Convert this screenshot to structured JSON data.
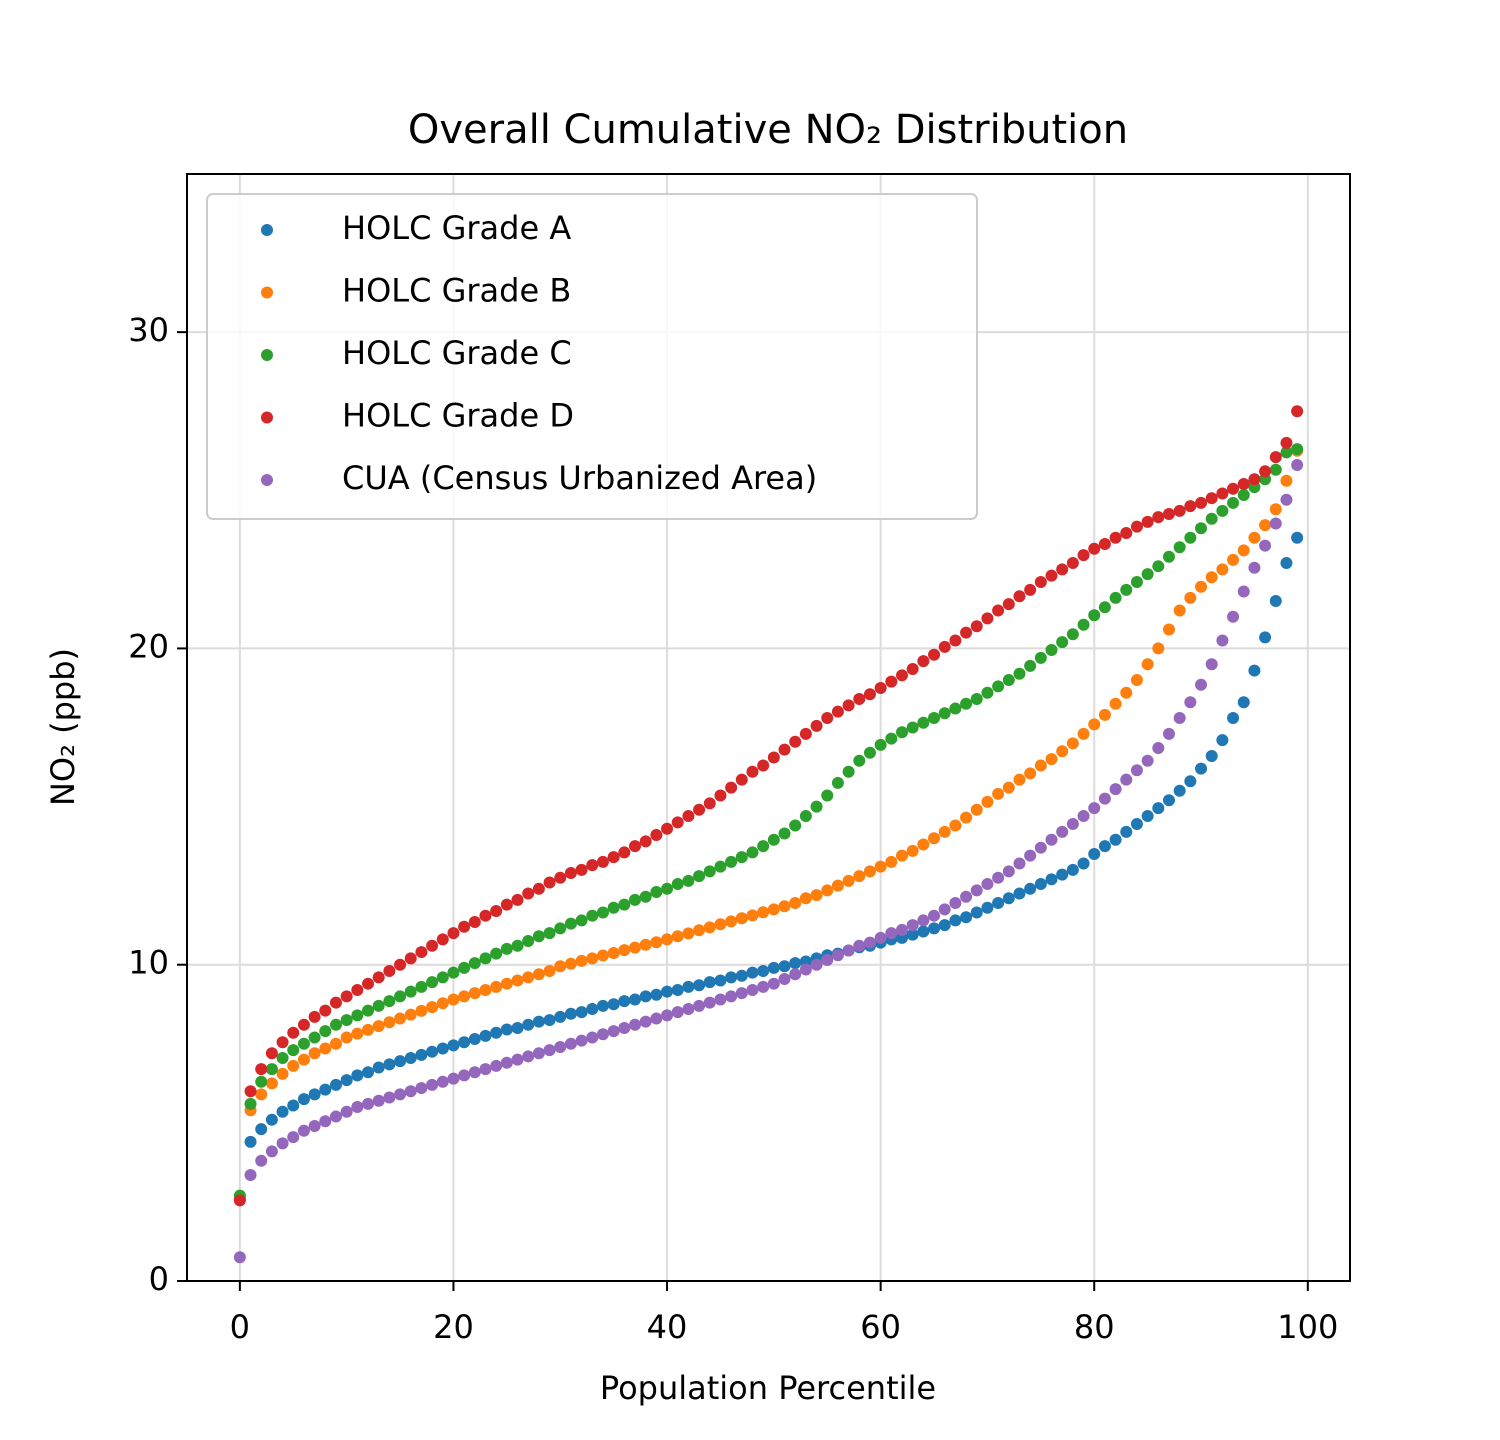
{
  "chart_data": {
    "type": "scatter",
    "title": "Overall Cumulative NO₂ Distribution",
    "x_label": "Population Percentile",
    "y_label": "NO₂ (ppb)",
    "xlim": [
      -4.95,
      103.95
    ],
    "ylim": [
      0,
      35
    ],
    "xticks": [
      0,
      20,
      40,
      60,
      80,
      100
    ],
    "yticks": [
      0,
      10,
      20,
      30
    ],
    "grid": true,
    "legend": "upper left",
    "x": [
      0,
      1,
      2,
      3,
      4,
      5,
      6,
      7,
      8,
      9,
      10,
      11,
      12,
      13,
      14,
      15,
      16,
      17,
      18,
      19,
      20,
      21,
      22,
      23,
      24,
      25,
      26,
      27,
      28,
      29,
      30,
      31,
      32,
      33,
      34,
      35,
      36,
      37,
      38,
      39,
      40,
      41,
      42,
      43,
      44,
      45,
      46,
      47,
      48,
      49,
      50,
      51,
      52,
      53,
      54,
      55,
      56,
      57,
      58,
      59,
      60,
      61,
      62,
      63,
      64,
      65,
      66,
      67,
      68,
      69,
      70,
      71,
      72,
      73,
      74,
      75,
      76,
      77,
      78,
      79,
      80,
      81,
      82,
      83,
      84,
      85,
      86,
      87,
      88,
      89,
      90,
      91,
      92,
      93,
      94,
      95,
      96,
      97,
      98,
      99
    ],
    "series": [
      {
        "name": "HOLC Grade A",
        "color": "#1f77b4",
        "values": [
          2.6,
          4.4,
          4.8,
          5.1,
          5.35,
          5.55,
          5.75,
          5.9,
          6.05,
          6.2,
          6.35,
          6.5,
          6.6,
          6.75,
          6.85,
          6.95,
          7.05,
          7.15,
          7.25,
          7.35,
          7.45,
          7.55,
          7.65,
          7.75,
          7.85,
          7.95,
          8.0,
          8.1,
          8.2,
          8.25,
          8.35,
          8.45,
          8.5,
          8.6,
          8.7,
          8.75,
          8.85,
          8.9,
          9.0,
          9.05,
          9.15,
          9.2,
          9.3,
          9.35,
          9.45,
          9.5,
          9.6,
          9.65,
          9.75,
          9.8,
          9.9,
          9.95,
          10.05,
          10.1,
          10.2,
          10.3,
          10.35,
          10.45,
          10.55,
          10.6,
          10.7,
          10.8,
          10.85,
          10.95,
          11.05,
          11.15,
          11.25,
          11.4,
          11.5,
          11.65,
          11.8,
          11.95,
          12.1,
          12.25,
          12.4,
          12.55,
          12.7,
          12.85,
          13.0,
          13.2,
          13.5,
          13.75,
          13.95,
          14.2,
          14.45,
          14.7,
          14.95,
          15.2,
          15.5,
          15.8,
          16.2,
          16.6,
          17.1,
          17.8,
          18.3,
          19.3,
          20.35,
          21.5,
          22.7,
          23.5
        ]
      },
      {
        "name": "HOLC Grade B",
        "color": "#ff7f0e",
        "values": [
          2.6,
          5.4,
          5.9,
          6.25,
          6.55,
          6.8,
          7.0,
          7.2,
          7.35,
          7.5,
          7.7,
          7.82,
          7.94,
          8.06,
          8.18,
          8.3,
          8.42,
          8.54,
          8.66,
          8.78,
          8.9,
          9.0,
          9.1,
          9.2,
          9.3,
          9.4,
          9.5,
          9.6,
          9.7,
          9.8,
          9.95,
          10.03,
          10.12,
          10.2,
          10.29,
          10.37,
          10.46,
          10.54,
          10.63,
          10.71,
          10.8,
          10.9,
          10.99,
          11.09,
          11.18,
          11.28,
          11.37,
          11.47,
          11.56,
          11.66,
          11.75,
          11.85,
          11.95,
          12.1,
          12.2,
          12.35,
          12.5,
          12.65,
          12.8,
          12.95,
          13.1,
          13.25,
          13.45,
          13.6,
          13.8,
          14.0,
          14.2,
          14.4,
          14.65,
          14.9,
          15.15,
          15.4,
          15.6,
          15.85,
          16.05,
          16.3,
          16.5,
          16.75,
          17.0,
          17.3,
          17.6,
          17.9,
          18.25,
          18.6,
          19.0,
          19.5,
          20.0,
          20.6,
          21.2,
          21.6,
          21.95,
          22.25,
          22.5,
          22.8,
          23.1,
          23.5,
          23.9,
          24.4,
          25.3,
          26.25
        ]
      },
      {
        "name": "HOLC Grade C",
        "color": "#2ca02c",
        "values": [
          2.7,
          5.6,
          6.3,
          6.7,
          7.05,
          7.3,
          7.5,
          7.7,
          7.9,
          8.1,
          8.25,
          8.4,
          8.55,
          8.7,
          8.85,
          9.0,
          9.15,
          9.3,
          9.45,
          9.6,
          9.75,
          9.9,
          10.05,
          10.2,
          10.35,
          10.5,
          10.6,
          10.75,
          10.9,
          11.0,
          11.15,
          11.3,
          11.4,
          11.55,
          11.65,
          11.8,
          11.9,
          12.05,
          12.15,
          12.3,
          12.4,
          12.55,
          12.65,
          12.8,
          12.95,
          13.1,
          13.25,
          13.4,
          13.55,
          13.75,
          13.95,
          14.15,
          14.4,
          14.7,
          15.0,
          15.35,
          15.75,
          16.1,
          16.45,
          16.7,
          16.95,
          17.15,
          17.35,
          17.5,
          17.65,
          17.8,
          17.95,
          18.1,
          18.25,
          18.4,
          18.6,
          18.8,
          19.0,
          19.2,
          19.45,
          19.7,
          19.95,
          20.2,
          20.45,
          20.75,
          21.05,
          21.3,
          21.6,
          21.85,
          22.1,
          22.35,
          22.6,
          22.9,
          23.2,
          23.5,
          23.8,
          24.1,
          24.35,
          24.6,
          24.85,
          25.1,
          25.35,
          25.65,
          26.2,
          26.3
        ]
      },
      {
        "name": "HOLC Grade D",
        "color": "#d62728",
        "values": [
          2.55,
          6.0,
          6.7,
          7.2,
          7.55,
          7.85,
          8.1,
          8.35,
          8.55,
          8.8,
          9.0,
          9.2,
          9.4,
          9.6,
          9.8,
          10.0,
          10.2,
          10.4,
          10.6,
          10.8,
          11.0,
          11.2,
          11.35,
          11.55,
          11.7,
          11.9,
          12.05,
          12.25,
          12.4,
          12.6,
          12.75,
          12.9,
          13.0,
          13.15,
          13.25,
          13.4,
          13.55,
          13.75,
          13.9,
          14.1,
          14.3,
          14.5,
          14.7,
          14.9,
          15.1,
          15.35,
          15.6,
          15.85,
          16.1,
          16.3,
          16.55,
          16.8,
          17.05,
          17.3,
          17.55,
          17.8,
          18.0,
          18.2,
          18.4,
          18.55,
          18.75,
          18.95,
          19.15,
          19.35,
          19.6,
          19.8,
          20.05,
          20.25,
          20.5,
          20.7,
          20.95,
          21.2,
          21.4,
          21.65,
          21.85,
          22.1,
          22.3,
          22.5,
          22.7,
          22.95,
          23.15,
          23.3,
          23.5,
          23.65,
          23.85,
          24.0,
          24.15,
          24.25,
          24.35,
          24.5,
          24.6,
          24.75,
          24.9,
          25.05,
          25.2,
          25.35,
          25.6,
          26.05,
          26.5,
          27.5
        ]
      },
      {
        "name": "CUA (Census Urbanized Area)",
        "color": "#9467bd",
        "values": [
          0.75,
          3.35,
          3.8,
          4.1,
          4.35,
          4.55,
          4.75,
          4.9,
          5.05,
          5.2,
          5.35,
          5.5,
          5.6,
          5.7,
          5.8,
          5.9,
          6.0,
          6.1,
          6.2,
          6.3,
          6.4,
          6.5,
          6.6,
          6.7,
          6.8,
          6.9,
          7.0,
          7.1,
          7.2,
          7.3,
          7.4,
          7.5,
          7.6,
          7.7,
          7.8,
          7.9,
          8.0,
          8.1,
          8.2,
          8.3,
          8.4,
          8.5,
          8.6,
          8.7,
          8.8,
          8.9,
          9.0,
          9.1,
          9.2,
          9.3,
          9.4,
          9.55,
          9.7,
          9.85,
          10.0,
          10.15,
          10.3,
          10.45,
          10.6,
          10.7,
          10.85,
          11.0,
          11.1,
          11.25,
          11.4,
          11.55,
          11.75,
          11.95,
          12.15,
          12.35,
          12.55,
          12.75,
          12.95,
          13.2,
          13.45,
          13.7,
          13.95,
          14.2,
          14.45,
          14.7,
          14.95,
          15.25,
          15.55,
          15.85,
          16.15,
          16.45,
          16.85,
          17.3,
          17.8,
          18.3,
          18.85,
          19.5,
          20.25,
          21.0,
          21.8,
          22.55,
          23.25,
          23.95,
          24.7,
          25.8
        ]
      }
    ]
  }
}
